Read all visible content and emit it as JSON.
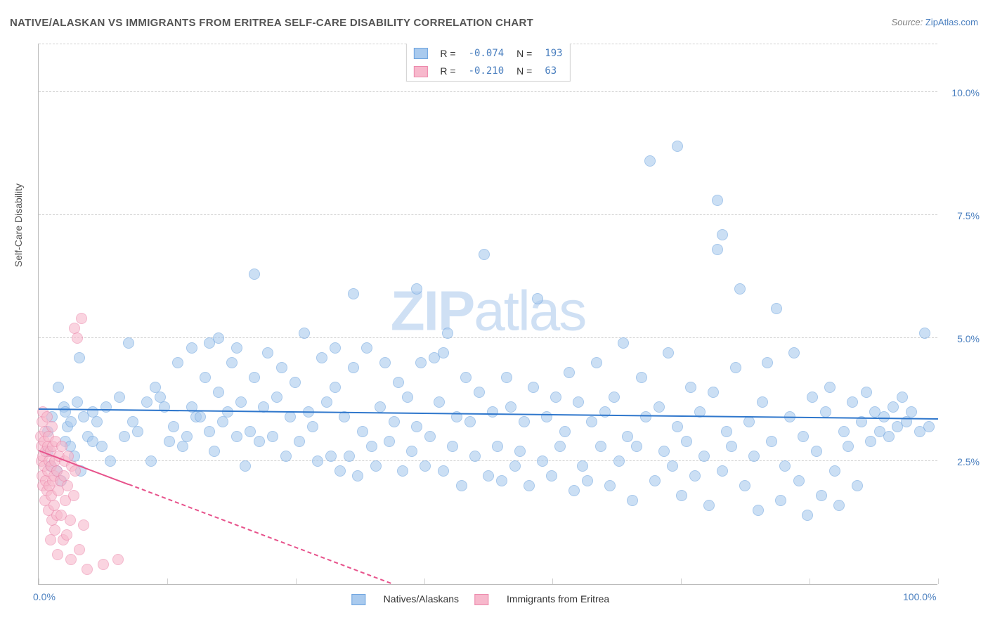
{
  "title": "NATIVE/ALASKAN VS IMMIGRANTS FROM ERITREA SELF-CARE DISABILITY CORRELATION CHART",
  "source_prefix": "Source: ",
  "source_name": "ZipAtlas.com",
  "ylabel": "Self-Care Disability",
  "watermark_a": "ZIP",
  "watermark_b": "atlas",
  "xlim": [
    0,
    100
  ],
  "ylim": [
    0,
    11
  ],
  "xticks": [
    0,
    14.3,
    28.6,
    42.9,
    57.1,
    71.4,
    85.7,
    100
  ],
  "xtick_labels": {
    "0": "0.0%",
    "100": "100.0%"
  },
  "yticks": [
    2.5,
    5.0,
    7.5,
    10.0
  ],
  "ytick_labels": [
    "2.5%",
    "5.0%",
    "7.5%",
    "10.0%"
  ],
  "grid_color": "#d0d0d0",
  "bg": "#ffffff",
  "series": [
    {
      "name": "Natives/Alaskans",
      "fill": "#a9caee",
      "fill_alpha": 0.6,
      "stroke": "#6ea4df",
      "r": 8,
      "reg_color": "#2f77cc",
      "reg_y0": 3.55,
      "reg_y100": 3.35,
      "R": "-0.074",
      "N": "193",
      "pts": [
        [
          1,
          3.1
        ],
        [
          1,
          2.7
        ],
        [
          1.5,
          3.4
        ],
        [
          1.3,
          2.4
        ],
        [
          2,
          2.3
        ],
        [
          2.2,
          4.0
        ],
        [
          2.5,
          2.1
        ],
        [
          2.8,
          3.6
        ],
        [
          3,
          3.5
        ],
        [
          3,
          2.9
        ],
        [
          3.2,
          3.2
        ],
        [
          3.5,
          2.8
        ],
        [
          3.6,
          3.3
        ],
        [
          4,
          2.6
        ],
        [
          4.3,
          3.7
        ],
        [
          4.5,
          4.6
        ],
        [
          4.7,
          2.3
        ],
        [
          5,
          3.4
        ],
        [
          5.5,
          3.0
        ],
        [
          6,
          3.5
        ],
        [
          6,
          2.9
        ],
        [
          6.5,
          3.3
        ],
        [
          7,
          2.8
        ],
        [
          7.5,
          3.6
        ],
        [
          8,
          2.5
        ],
        [
          9,
          3.8
        ],
        [
          9.5,
          3.0
        ],
        [
          10,
          4.9
        ],
        [
          10.5,
          3.3
        ],
        [
          11,
          3.1
        ],
        [
          12,
          3.7
        ],
        [
          12.5,
          2.5
        ],
        [
          13,
          4.0
        ],
        [
          13.5,
          3.8
        ],
        [
          14,
          3.6
        ],
        [
          14.5,
          2.9
        ],
        [
          15,
          3.2
        ],
        [
          15.5,
          4.5
        ],
        [
          16,
          2.8
        ],
        [
          16.5,
          3.0
        ],
        [
          17,
          3.6
        ],
        [
          17,
          4.8
        ],
        [
          17.5,
          3.4
        ],
        [
          18,
          3.4
        ],
        [
          18.5,
          4.2
        ],
        [
          19,
          3.1
        ],
        [
          19,
          4.9
        ],
        [
          19.5,
          2.7
        ],
        [
          20,
          3.9
        ],
        [
          20,
          5.0
        ],
        [
          20.5,
          3.3
        ],
        [
          21,
          3.5
        ],
        [
          21.5,
          4.5
        ],
        [
          22,
          3.0
        ],
        [
          22,
          4.8
        ],
        [
          22.5,
          3.7
        ],
        [
          23,
          2.4
        ],
        [
          23.5,
          3.1
        ],
        [
          24,
          4.2
        ],
        [
          24,
          6.3
        ],
        [
          24.5,
          2.9
        ],
        [
          25,
          3.6
        ],
        [
          25.5,
          4.7
        ],
        [
          26,
          3.0
        ],
        [
          26.5,
          3.8
        ],
        [
          27,
          4.4
        ],
        [
          27.5,
          2.6
        ],
        [
          28,
          3.4
        ],
        [
          28.5,
          4.1
        ],
        [
          29,
          2.9
        ],
        [
          29.5,
          5.1
        ],
        [
          30,
          3.5
        ],
        [
          30.5,
          3.2
        ],
        [
          31,
          2.5
        ],
        [
          31.5,
          4.6
        ],
        [
          32,
          3.7
        ],
        [
          32.5,
          2.6
        ],
        [
          33,
          4.0
        ],
        [
          33,
          4.8
        ],
        [
          33.5,
          2.3
        ],
        [
          34,
          3.4
        ],
        [
          34.5,
          2.6
        ],
        [
          35,
          4.4
        ],
        [
          35,
          5.9
        ],
        [
          35.5,
          2.2
        ],
        [
          36,
          3.1
        ],
        [
          36.5,
          4.8
        ],
        [
          37,
          2.8
        ],
        [
          37.5,
          2.4
        ],
        [
          38,
          3.6
        ],
        [
          38.5,
          4.5
        ],
        [
          39,
          2.9
        ],
        [
          39.5,
          3.3
        ],
        [
          40,
          4.1
        ],
        [
          40.5,
          2.3
        ],
        [
          41,
          3.8
        ],
        [
          41.5,
          2.7
        ],
        [
          42,
          3.2
        ],
        [
          42,
          6.0
        ],
        [
          42.5,
          4.5
        ],
        [
          43,
          2.4
        ],
        [
          43.5,
          3.0
        ],
        [
          44,
          4.6
        ],
        [
          44.5,
          3.7
        ],
        [
          45,
          2.3
        ],
        [
          45,
          4.7
        ],
        [
          45.5,
          5.1
        ],
        [
          46,
          2.8
        ],
        [
          46.5,
          3.4
        ],
        [
          47,
          2.0
        ],
        [
          47.5,
          4.2
        ],
        [
          48,
          3.3
        ],
        [
          48.5,
          2.6
        ],
        [
          49,
          3.9
        ],
        [
          49.5,
          6.7
        ],
        [
          50,
          2.2
        ],
        [
          50.5,
          3.5
        ],
        [
          51,
          2.8
        ],
        [
          51.5,
          2.1
        ],
        [
          52,
          4.2
        ],
        [
          52.5,
          3.6
        ],
        [
          53,
          2.4
        ],
        [
          53.5,
          2.7
        ],
        [
          54,
          3.3
        ],
        [
          54.5,
          2.0
        ],
        [
          55,
          4.0
        ],
        [
          55.5,
          5.8
        ],
        [
          56,
          2.5
        ],
        [
          56.5,
          3.4
        ],
        [
          57,
          2.2
        ],
        [
          57.5,
          3.8
        ],
        [
          58,
          2.8
        ],
        [
          58.5,
          3.1
        ],
        [
          59,
          4.3
        ],
        [
          59.5,
          1.9
        ],
        [
          60,
          3.7
        ],
        [
          60.5,
          2.4
        ],
        [
          61,
          2.1
        ],
        [
          61.5,
          3.3
        ],
        [
          62,
          4.5
        ],
        [
          62.5,
          2.8
        ],
        [
          63,
          3.5
        ],
        [
          63.5,
          2.0
        ],
        [
          64,
          3.8
        ],
        [
          64.5,
          2.5
        ],
        [
          65,
          4.9
        ],
        [
          65.5,
          3.0
        ],
        [
          66,
          1.7
        ],
        [
          66.5,
          2.8
        ],
        [
          67,
          4.2
        ],
        [
          67.5,
          3.4
        ],
        [
          68,
          8.6
        ],
        [
          68.5,
          2.1
        ],
        [
          69,
          3.6
        ],
        [
          69.5,
          2.7
        ],
        [
          70,
          4.7
        ],
        [
          70.5,
          2.4
        ],
        [
          71,
          3.2
        ],
        [
          71,
          8.9
        ],
        [
          71.5,
          1.8
        ],
        [
          72,
          2.9
        ],
        [
          72.5,
          4.0
        ],
        [
          73,
          2.2
        ],
        [
          73.5,
          3.5
        ],
        [
          74,
          2.6
        ],
        [
          74.5,
          1.6
        ],
        [
          75,
          3.9
        ],
        [
          75.5,
          6.8
        ],
        [
          75.5,
          7.8
        ],
        [
          76,
          2.3
        ],
        [
          76,
          7.1
        ],
        [
          76.5,
          3.1
        ],
        [
          77,
          2.8
        ],
        [
          77.5,
          4.4
        ],
        [
          78,
          6.0
        ],
        [
          78.5,
          2.0
        ],
        [
          79,
          3.3
        ],
        [
          79.5,
          2.6
        ],
        [
          80,
          1.5
        ],
        [
          80.5,
          3.7
        ],
        [
          81,
          4.5
        ],
        [
          81.5,
          2.9
        ],
        [
          82,
          5.6
        ],
        [
          82.5,
          1.7
        ],
        [
          83,
          2.4
        ],
        [
          83.5,
          3.4
        ],
        [
          84,
          4.7
        ],
        [
          84.5,
          2.1
        ],
        [
          85,
          3.0
        ],
        [
          85.5,
          1.4
        ],
        [
          86,
          3.8
        ],
        [
          86.5,
          2.7
        ],
        [
          87,
          1.8
        ],
        [
          87.5,
          3.5
        ],
        [
          88,
          4.0
        ],
        [
          88.5,
          2.3
        ],
        [
          89,
          1.6
        ],
        [
          89.5,
          3.1
        ],
        [
          90,
          2.8
        ],
        [
          90.5,
          3.7
        ],
        [
          91,
          2.0
        ],
        [
          91.5,
          3.3
        ],
        [
          92,
          3.9
        ],
        [
          92.5,
          2.9
        ],
        [
          93,
          3.5
        ],
        [
          93.5,
          3.1
        ],
        [
          94,
          3.4
        ],
        [
          94.5,
          3.0
        ],
        [
          95,
          3.6
        ],
        [
          95.5,
          3.2
        ],
        [
          96,
          3.8
        ],
        [
          96.5,
          3.3
        ],
        [
          97,
          3.5
        ],
        [
          98,
          3.1
        ],
        [
          98.5,
          5.1
        ],
        [
          99,
          3.2
        ]
      ]
    },
    {
      "name": "Immigrants from Eritrea",
      "fill": "#f7b8cc",
      "fill_alpha": 0.6,
      "stroke": "#ec89ac",
      "r": 8,
      "reg_color": "#e7528b",
      "reg_y0": 2.7,
      "reg_y100": -4.2,
      "reg_dash_from_x": 10,
      "R": "-0.210",
      "N": "63",
      "pts": [
        [
          0.2,
          3.0
        ],
        [
          0.3,
          2.5
        ],
        [
          0.3,
          2.8
        ],
        [
          0.4,
          3.3
        ],
        [
          0.4,
          2.2
        ],
        [
          0.5,
          2.6
        ],
        [
          0.5,
          2.0
        ],
        [
          0.5,
          3.5
        ],
        [
          0.6,
          2.9
        ],
        [
          0.6,
          2.4
        ],
        [
          0.7,
          1.7
        ],
        [
          0.7,
          3.1
        ],
        [
          0.8,
          2.7
        ],
        [
          0.8,
          2.1
        ],
        [
          0.9,
          3.4
        ],
        [
          0.9,
          1.9
        ],
        [
          1.0,
          2.8
        ],
        [
          1.0,
          2.3
        ],
        [
          1.1,
          1.5
        ],
        [
          1.1,
          3.0
        ],
        [
          1.2,
          2.5
        ],
        [
          1.2,
          2.0
        ],
        [
          1.3,
          0.9
        ],
        [
          1.3,
          2.7
        ],
        [
          1.4,
          1.8
        ],
        [
          1.4,
          2.4
        ],
        [
          1.5,
          3.2
        ],
        [
          1.5,
          1.3
        ],
        [
          1.6,
          2.1
        ],
        [
          1.6,
          2.8
        ],
        [
          1.7,
          1.6
        ],
        [
          1.7,
          2.2
        ],
        [
          1.8,
          2.5
        ],
        [
          1.8,
          1.1
        ],
        [
          1.9,
          2.9
        ],
        [
          2.0,
          1.4
        ],
        [
          2.0,
          2.3
        ],
        [
          2.1,
          0.6
        ],
        [
          2.2,
          1.9
        ],
        [
          2.3,
          2.6
        ],
        [
          2.4,
          2.1
        ],
        [
          2.5,
          1.4
        ],
        [
          2.6,
          2.8
        ],
        [
          2.7,
          0.9
        ],
        [
          2.8,
          2.2
        ],
        [
          2.9,
          2.5
        ],
        [
          3.0,
          1.7
        ],
        [
          3.1,
          1.0
        ],
        [
          3.2,
          2.0
        ],
        [
          3.3,
          2.6
        ],
        [
          3.5,
          1.3
        ],
        [
          3.6,
          0.5
        ],
        [
          3.7,
          2.4
        ],
        [
          3.9,
          1.8
        ],
        [
          4.0,
          5.2
        ],
        [
          4.1,
          2.3
        ],
        [
          4.3,
          5.0
        ],
        [
          4.5,
          0.7
        ],
        [
          4.8,
          5.4
        ],
        [
          5.0,
          1.2
        ],
        [
          5.4,
          0.3
        ],
        [
          7.2,
          0.4
        ],
        [
          8.8,
          0.5
        ]
      ]
    }
  ],
  "bottom_legend": [
    "Natives/Alaskans",
    "Immigrants from Eritrea"
  ],
  "legend_labels": {
    "R": "R =",
    "N": "N ="
  }
}
